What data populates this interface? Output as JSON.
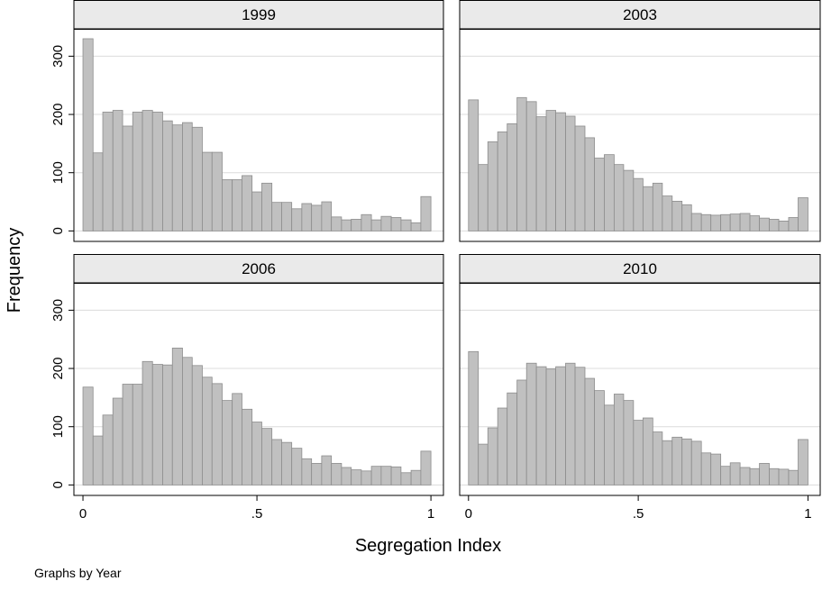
{
  "y_label": "Frequency",
  "x_label": "Segregation Index",
  "note": "Graphs by Year",
  "chart_data": [
    {
      "type": "histogram",
      "title": "1999",
      "bins": [
        0,
        0.029,
        0.057,
        0.086,
        0.114,
        0.143,
        0.171,
        0.2,
        0.229,
        0.257,
        0.286,
        0.314,
        0.343,
        0.371,
        0.4,
        0.429,
        0.457,
        0.486,
        0.514,
        0.543,
        0.571,
        0.6,
        0.629,
        0.657,
        0.686,
        0.714,
        0.743,
        0.771,
        0.8,
        0.829,
        0.857,
        0.886,
        0.914,
        0.943,
        0.971,
        1
      ],
      "values": [
        330,
        134,
        204,
        207,
        180,
        204,
        207,
        204,
        189,
        182,
        186,
        178,
        135,
        135,
        88,
        88,
        95,
        67,
        82,
        49,
        49,
        38,
        47,
        44,
        50,
        24,
        19,
        20,
        28,
        19,
        25,
        23,
        19,
        14,
        59
      ],
      "color": "#c0c0c0",
      "xlim": [
        -0.026,
        1.036
      ],
      "ylim": [
        -18,
        347
      ],
      "yticks": [
        0,
        100,
        200,
        300
      ],
      "grid": true
    },
    {
      "type": "histogram",
      "title": "2003",
      "bins": [
        0,
        0.029,
        0.057,
        0.086,
        0.114,
        0.143,
        0.171,
        0.2,
        0.229,
        0.257,
        0.286,
        0.314,
        0.343,
        0.371,
        0.4,
        0.429,
        0.457,
        0.486,
        0.514,
        0.543,
        0.571,
        0.6,
        0.629,
        0.657,
        0.686,
        0.714,
        0.743,
        0.771,
        0.8,
        0.829,
        0.857,
        0.886,
        0.914,
        0.943,
        0.971,
        1
      ],
      "values": [
        225,
        114,
        153,
        170,
        184,
        229,
        222,
        196,
        207,
        203,
        197,
        180,
        160,
        125,
        131,
        114,
        104,
        90,
        76,
        82,
        60,
        51,
        45,
        30,
        28,
        27,
        28,
        29,
        30,
        26,
        22,
        20,
        17,
        23,
        57
      ],
      "color": "#c0c0c0",
      "xlim": [
        -0.026,
        1.036
      ],
      "ylim": [
        -18,
        347
      ],
      "yticks": [
        0,
        100,
        200,
        300
      ],
      "grid": true
    },
    {
      "type": "histogram",
      "title": "2006",
      "bins": [
        0,
        0.029,
        0.057,
        0.086,
        0.114,
        0.143,
        0.171,
        0.2,
        0.229,
        0.257,
        0.286,
        0.314,
        0.343,
        0.371,
        0.4,
        0.429,
        0.457,
        0.486,
        0.514,
        0.543,
        0.571,
        0.6,
        0.629,
        0.657,
        0.686,
        0.714,
        0.743,
        0.771,
        0.8,
        0.829,
        0.857,
        0.886,
        0.914,
        0.943,
        0.971,
        1
      ],
      "values": [
        168,
        84,
        120,
        149,
        173,
        173,
        212,
        207,
        206,
        235,
        219,
        205,
        185,
        174,
        145,
        157,
        130,
        108,
        97,
        78,
        73,
        63,
        45,
        37,
        50,
        37,
        30,
        26,
        24,
        32,
        32,
        31,
        21,
        25,
        58
      ],
      "color": "#c0c0c0",
      "xlim": [
        -0.026,
        1.036
      ],
      "ylim": [
        -18,
        347
      ],
      "xticks": [
        0,
        {
          "value": 0.5,
          "label": ".5"
        },
        1
      ],
      "yticks": [
        0,
        100,
        200,
        300
      ],
      "grid": true
    },
    {
      "type": "histogram",
      "title": "2010",
      "bins": [
        0,
        0.029,
        0.057,
        0.086,
        0.114,
        0.143,
        0.171,
        0.2,
        0.229,
        0.257,
        0.286,
        0.314,
        0.343,
        0.371,
        0.4,
        0.429,
        0.457,
        0.486,
        0.514,
        0.543,
        0.571,
        0.6,
        0.629,
        0.657,
        0.686,
        0.714,
        0.743,
        0.771,
        0.8,
        0.829,
        0.857,
        0.886,
        0.914,
        0.943,
        0.971,
        1
      ],
      "values": [
        229,
        70,
        98,
        132,
        158,
        180,
        209,
        203,
        199,
        203,
        209,
        202,
        183,
        162,
        137,
        156,
        145,
        111,
        115,
        91,
        76,
        82,
        79,
        75,
        55,
        53,
        32,
        38,
        30,
        28,
        37,
        28,
        27,
        25,
        78
      ],
      "color": "#c0c0c0",
      "xlim": [
        -0.026,
        1.036
      ],
      "ylim": [
        -18,
        347
      ],
      "xticks": [
        0,
        {
          "value": 0.5,
          "label": ".5"
        },
        1
      ],
      "yticks": [
        0,
        100,
        200,
        300
      ],
      "grid": true
    }
  ]
}
